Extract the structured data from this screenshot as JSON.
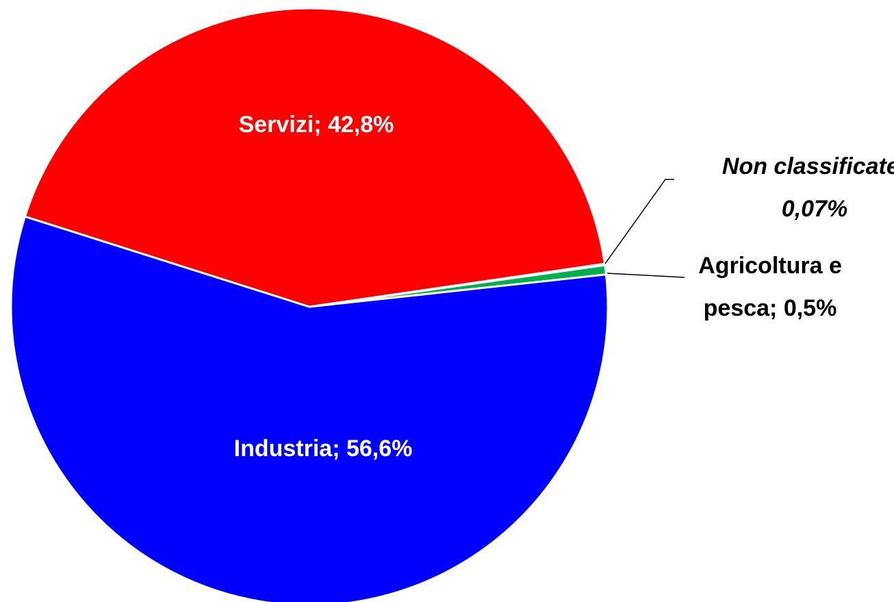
{
  "chart_data": {
    "type": "pie",
    "values": [
      42.8,
      0.07,
      0.5,
      56.6
    ],
    "value_labels": [
      [
        "Servizi; 42,8%"
      ],
      [
        "Non classificate;",
        "0,07%"
      ],
      [
        "Agricoltura e",
        "pesca; 0,5%"
      ],
      [
        "Industria; 56,6%"
      ]
    ],
    "colors": [
      "#ff0000",
      "#f2f2f2",
      "#00b050",
      "#0000ff"
    ]
  }
}
